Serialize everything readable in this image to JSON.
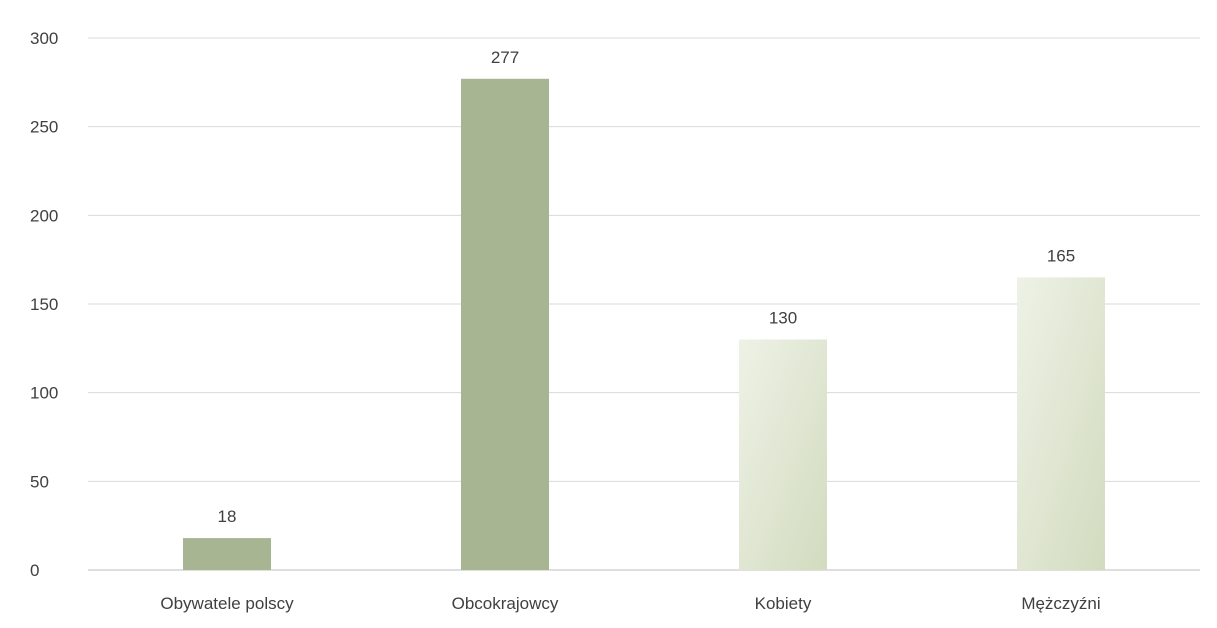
{
  "chart_data": {
    "type": "bar",
    "title": "",
    "xlabel": "",
    "ylabel": "",
    "categories": [
      "Obywatele polscy",
      "Obcokrajowcy",
      "Kobiety",
      "Mężczyźni"
    ],
    "values": [
      18,
      277,
      130,
      165
    ],
    "data_labels": [
      "18",
      "277",
      "130",
      "165"
    ],
    "ylim": [
      0,
      300
    ],
    "yticks": [
      0,
      50,
      100,
      150,
      200,
      250,
      300
    ],
    "grid": true,
    "legend": "none",
    "bar_styles": [
      "solid",
      "solid",
      "gradient",
      "gradient"
    ],
    "colors": {
      "solid": "#a8b592",
      "gradient_light": "#eef2e6",
      "gradient_dark": "#d2dbbf",
      "grid": "#d9d9d9",
      "axis": "#bfbfbf",
      "text": "#404040"
    }
  }
}
